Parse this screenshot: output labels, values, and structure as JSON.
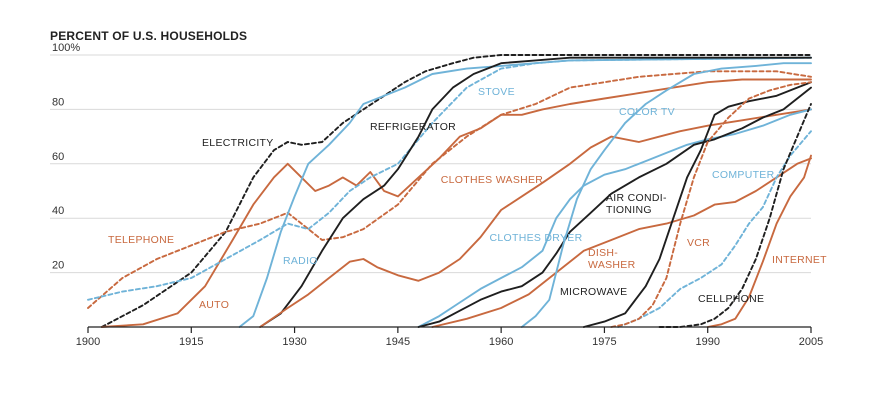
{
  "chart_data": {
    "type": "line",
    "title": "",
    "ylabel": "PERCENT OF U.S. HOUSEHOLDS",
    "xlabel": "",
    "xlim": [
      1900,
      2005
    ],
    "ylim": [
      0,
      100
    ],
    "x_ticks": [
      "1900",
      "1915",
      "1930",
      "1945",
      "1960",
      "1975",
      "1990",
      "2005"
    ],
    "y_ticks": [
      "100%",
      "80",
      "60",
      "40",
      "20"
    ],
    "colors": {
      "black": "#1f1f1f",
      "orange": "#c8693f",
      "blue": "#6fb3d8",
      "grid": "#d9d9d9"
    },
    "series": [
      {
        "name": "ELECTRICITY",
        "label": "ELECTRICITY",
        "color": "black",
        "dashed": true,
        "points": [
          [
            1902,
            0
          ],
          [
            1908,
            8
          ],
          [
            1915,
            20
          ],
          [
            1920,
            35
          ],
          [
            1924,
            55
          ],
          [
            1927,
            65
          ],
          [
            1929,
            68
          ],
          [
            1931,
            67
          ],
          [
            1934,
            68
          ],
          [
            1937,
            75
          ],
          [
            1940,
            80
          ],
          [
            1943,
            85
          ],
          [
            1946,
            90
          ],
          [
            1949,
            94
          ],
          [
            1953,
            97
          ],
          [
            1956,
            99
          ],
          [
            1960,
            100
          ],
          [
            2005,
            100
          ]
        ]
      },
      {
        "name": "TELEPHONE",
        "label": "TELEPHONE",
        "color": "orange",
        "dashed": true,
        "points": [
          [
            1900,
            7
          ],
          [
            1905,
            18
          ],
          [
            1910,
            25
          ],
          [
            1915,
            30
          ],
          [
            1920,
            35
          ],
          [
            1925,
            38
          ],
          [
            1929,
            42
          ],
          [
            1931,
            38
          ],
          [
            1934,
            32
          ],
          [
            1937,
            33
          ],
          [
            1940,
            36
          ],
          [
            1945,
            45
          ],
          [
            1950,
            60
          ],
          [
            1955,
            70
          ],
          [
            1960,
            78
          ],
          [
            1965,
            82
          ],
          [
            1970,
            88
          ],
          [
            1975,
            90
          ],
          [
            1980,
            92
          ],
          [
            1985,
            93
          ],
          [
            1990,
            94
          ],
          [
            2000,
            94
          ],
          [
            2005,
            92
          ]
        ]
      },
      {
        "name": "AUTO",
        "label": "AUTO",
        "color": "orange",
        "dashed": false,
        "points": [
          [
            1902,
            0
          ],
          [
            1908,
            1
          ],
          [
            1913,
            5
          ],
          [
            1917,
            15
          ],
          [
            1921,
            32
          ],
          [
            1924,
            45
          ],
          [
            1927,
            55
          ],
          [
            1929,
            60
          ],
          [
            1931,
            55
          ],
          [
            1933,
            50
          ],
          [
            1935,
            52
          ],
          [
            1937,
            55
          ],
          [
            1939,
            52
          ],
          [
            1941,
            57
          ],
          [
            1943,
            50
          ],
          [
            1945,
            48
          ],
          [
            1948,
            55
          ],
          [
            1951,
            62
          ],
          [
            1954,
            70
          ],
          [
            1957,
            73
          ],
          [
            1960,
            78
          ],
          [
            1963,
            78
          ],
          [
            1966,
            80
          ],
          [
            1970,
            82
          ],
          [
            1975,
            84
          ],
          [
            1980,
            86
          ],
          [
            1985,
            88
          ],
          [
            1990,
            90
          ],
          [
            1995,
            91
          ],
          [
            2000,
            91
          ],
          [
            2005,
            91
          ]
        ]
      },
      {
        "name": "RADIO",
        "label": "RADIO",
        "color": "blue",
        "dashed": false,
        "points": [
          [
            1922,
            0
          ],
          [
            1924,
            4
          ],
          [
            1926,
            18
          ],
          [
            1928,
            35
          ],
          [
            1930,
            48
          ],
          [
            1932,
            60
          ],
          [
            1935,
            67
          ],
          [
            1938,
            75
          ],
          [
            1940,
            82
          ],
          [
            1943,
            85
          ],
          [
            1946,
            88
          ],
          [
            1950,
            93
          ],
          [
            1955,
            95
          ],
          [
            1960,
            96
          ],
          [
            1970,
            98
          ],
          [
            2005,
            99
          ]
        ]
      },
      {
        "name": "STOVE",
        "label": "STOVE",
        "color": "blue",
        "dashed": true,
        "points": [
          [
            1900,
            10
          ],
          [
            1905,
            13
          ],
          [
            1910,
            15
          ],
          [
            1915,
            18
          ],
          [
            1920,
            25
          ],
          [
            1925,
            32
          ],
          [
            1929,
            38
          ],
          [
            1932,
            36
          ],
          [
            1935,
            42
          ],
          [
            1938,
            50
          ],
          [
            1941,
            55
          ],
          [
            1945,
            60
          ],
          [
            1950,
            75
          ],
          [
            1955,
            88
          ],
          [
            1960,
            95
          ],
          [
            1965,
            97
          ],
          [
            1970,
            98
          ],
          [
            2005,
            99
          ]
        ]
      },
      {
        "name": "REFRIGERATOR",
        "label": "REFRIGERATOR",
        "color": "black",
        "dashed": false,
        "points": [
          [
            1925,
            0
          ],
          [
            1928,
            5
          ],
          [
            1931,
            15
          ],
          [
            1934,
            28
          ],
          [
            1937,
            40
          ],
          [
            1940,
            47
          ],
          [
            1943,
            52
          ],
          [
            1945,
            58
          ],
          [
            1948,
            70
          ],
          [
            1950,
            80
          ],
          [
            1953,
            88
          ],
          [
            1956,
            93
          ],
          [
            1960,
            97
          ],
          [
            1965,
            98
          ],
          [
            1970,
            99
          ],
          [
            2005,
            99
          ]
        ]
      },
      {
        "name": "CLOTHES WASHER",
        "label": "CLOTHES WASHER",
        "color": "orange",
        "dashed": false,
        "points": [
          [
            1925,
            0
          ],
          [
            1929,
            7
          ],
          [
            1932,
            12
          ],
          [
            1935,
            18
          ],
          [
            1938,
            24
          ],
          [
            1940,
            25
          ],
          [
            1942,
            22
          ],
          [
            1945,
            19
          ],
          [
            1948,
            17
          ],
          [
            1951,
            20
          ],
          [
            1954,
            25
          ],
          [
            1957,
            33
          ],
          [
            1960,
            43
          ],
          [
            1963,
            48
          ],
          [
            1966,
            53
          ],
          [
            1970,
            60
          ],
          [
            1973,
            66
          ],
          [
            1976,
            70
          ],
          [
            1980,
            68
          ],
          [
            1983,
            70
          ],
          [
            1986,
            72
          ],
          [
            1990,
            74
          ],
          [
            1995,
            76
          ],
          [
            2000,
            78
          ],
          [
            2005,
            80
          ]
        ]
      },
      {
        "name": "CLOTHES DRYER",
        "label": "CLOTHES DRYER",
        "color": "blue",
        "dashed": false,
        "points": [
          [
            1948,
            0
          ],
          [
            1951,
            4
          ],
          [
            1954,
            9
          ],
          [
            1957,
            14
          ],
          [
            1960,
            18
          ],
          [
            1963,
            22
          ],
          [
            1966,
            28
          ],
          [
            1968,
            40
          ],
          [
            1970,
            47
          ],
          [
            1972,
            52
          ],
          [
            1975,
            56
          ],
          [
            1978,
            58
          ],
          [
            1981,
            61
          ],
          [
            1984,
            64
          ],
          [
            1987,
            67
          ],
          [
            1990,
            69
          ],
          [
            1994,
            71
          ],
          [
            1998,
            74
          ],
          [
            2002,
            78
          ],
          [
            2005,
            80
          ]
        ]
      },
      {
        "name": "AIR CONDITIONING",
        "label": "AIR CONDI-\nTIONING",
        "color": "black",
        "dashed": false,
        "points": [
          [
            1948,
            0
          ],
          [
            1951,
            2
          ],
          [
            1954,
            6
          ],
          [
            1957,
            10
          ],
          [
            1960,
            13
          ],
          [
            1963,
            15
          ],
          [
            1966,
            20
          ],
          [
            1968,
            27
          ],
          [
            1970,
            35
          ],
          [
            1973,
            42
          ],
          [
            1976,
            49
          ],
          [
            1980,
            55
          ],
          [
            1984,
            60
          ],
          [
            1988,
            67
          ],
          [
            1991,
            69
          ],
          [
            1995,
            73
          ],
          [
            1998,
            77
          ],
          [
            2001,
            80
          ],
          [
            2005,
            88
          ]
        ]
      },
      {
        "name": "DISHWASHER",
        "label": "DISH-\nWASHER",
        "color": "orange",
        "dashed": false,
        "points": [
          [
            1950,
            0
          ],
          [
            1955,
            3
          ],
          [
            1960,
            7
          ],
          [
            1964,
            12
          ],
          [
            1968,
            20
          ],
          [
            1972,
            28
          ],
          [
            1976,
            32
          ],
          [
            1980,
            36
          ],
          [
            1984,
            38
          ],
          [
            1988,
            41
          ],
          [
            1991,
            45
          ],
          [
            1994,
            46
          ],
          [
            1997,
            50
          ],
          [
            2000,
            55
          ],
          [
            2003,
            60
          ],
          [
            2005,
            62
          ]
        ]
      },
      {
        "name": "COLOR TV",
        "label": "COLOR TV",
        "color": "blue",
        "dashed": false,
        "points": [
          [
            1963,
            0
          ],
          [
            1965,
            4
          ],
          [
            1967,
            10
          ],
          [
            1969,
            30
          ],
          [
            1971,
            47
          ],
          [
            1973,
            58
          ],
          [
            1975,
            65
          ],
          [
            1978,
            75
          ],
          [
            1981,
            82
          ],
          [
            1984,
            87
          ],
          [
            1988,
            93
          ],
          [
            1992,
            95
          ],
          [
            1997,
            96
          ],
          [
            2001,
            97
          ],
          [
            2005,
            97
          ]
        ]
      },
      {
        "name": "MICROWAVE",
        "label": "MICROWAVE",
        "color": "black",
        "dashed": false,
        "points": [
          [
            1972,
            0
          ],
          [
            1975,
            2
          ],
          [
            1978,
            5
          ],
          [
            1981,
            15
          ],
          [
            1983,
            25
          ],
          [
            1985,
            40
          ],
          [
            1987,
            55
          ],
          [
            1989,
            65
          ],
          [
            1991,
            78
          ],
          [
            1993,
            81
          ],
          [
            1996,
            83
          ],
          [
            2000,
            85
          ],
          [
            2003,
            88
          ],
          [
            2005,
            90
          ]
        ]
      },
      {
        "name": "COMPUTER",
        "label": "COMPUTER",
        "color": "blue",
        "dashed": true,
        "points": [
          [
            1977,
            0
          ],
          [
            1980,
            3
          ],
          [
            1983,
            7
          ],
          [
            1986,
            14
          ],
          [
            1989,
            18
          ],
          [
            1992,
            23
          ],
          [
            1994,
            30
          ],
          [
            1996,
            38
          ],
          [
            1998,
            44
          ],
          [
            2000,
            55
          ],
          [
            2002,
            63
          ],
          [
            2005,
            72
          ]
        ]
      },
      {
        "name": "VCR",
        "label": "VCR",
        "color": "orange",
        "dashed": true,
        "points": [
          [
            1976,
            0
          ],
          [
            1978,
            1
          ],
          [
            1980,
            3
          ],
          [
            1982,
            8
          ],
          [
            1984,
            18
          ],
          [
            1986,
            38
          ],
          [
            1988,
            55
          ],
          [
            1990,
            68
          ],
          [
            1993,
            77
          ],
          [
            1996,
            84
          ],
          [
            1999,
            87
          ],
          [
            2002,
            89
          ],
          [
            2005,
            90
          ]
        ]
      },
      {
        "name": "INTERNET",
        "label": "INTERNET",
        "color": "orange",
        "dashed": false,
        "points": [
          [
            1990,
            0
          ],
          [
            1992,
            1
          ],
          [
            1994,
            3
          ],
          [
            1996,
            11
          ],
          [
            1998,
            24
          ],
          [
            2000,
            38
          ],
          [
            2002,
            48
          ],
          [
            2004,
            55
          ],
          [
            2005,
            63
          ]
        ]
      },
      {
        "name": "CELLPHONE",
        "label": "CELLPHONE",
        "color": "black",
        "dashed": true,
        "points": [
          [
            1983,
            0
          ],
          [
            1986,
            0
          ],
          [
            1989,
            1
          ],
          [
            1991,
            3
          ],
          [
            1993,
            7
          ],
          [
            1995,
            14
          ],
          [
            1997,
            25
          ],
          [
            1999,
            40
          ],
          [
            2001,
            58
          ],
          [
            2003,
            70
          ],
          [
            2005,
            82
          ]
        ]
      }
    ]
  }
}
